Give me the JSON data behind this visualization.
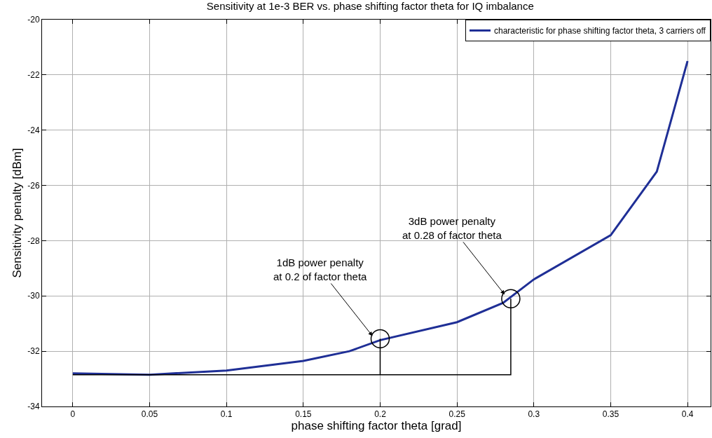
{
  "chart_data": {
    "type": "line",
    "title": "Sensitivity at 1e-3 BER vs. phase shifting factor theta for IQ imbalance",
    "xlabel": "phase shifting factor theta [grad]",
    "ylabel": "Sensitivity penalty [dBm]",
    "xlim": [
      -0.02,
      0.415
    ],
    "ylim": [
      -34,
      -20
    ],
    "xticks": [
      0,
      0.05,
      0.1,
      0.15,
      0.2,
      0.25,
      0.3,
      0.35,
      0.4
    ],
    "yticks": [
      -34,
      -32,
      -30,
      -28,
      -26,
      -24,
      -22,
      -20
    ],
    "grid": true,
    "legend": "top right",
    "marker": "none",
    "line_style": "solid",
    "series": [
      {
        "name": "characteristic for phase shifting factor theta, 3 carriers off",
        "color": "#1f2f96",
        "x": [
          0,
          0.05,
          0.1,
          0.15,
          0.18,
          0.2,
          0.25,
          0.28,
          0.3,
          0.35,
          0.38,
          0.4
        ],
        "values": [
          -32.8,
          -32.85,
          -32.7,
          -32.35,
          -32.0,
          -31.6,
          -30.95,
          -30.25,
          -29.4,
          -27.8,
          -25.5,
          -21.5
        ]
      },
      {
        "type": "line",
        "color": "#000000",
        "x": [
          0.2,
          0.2,
          0,
          0.285,
          0.285
        ],
        "values": [
          -31.55,
          -32.85,
          -32.85,
          -32.85,
          -30.1
        ]
      },
      {
        "type": "scatter",
        "marker": "circle",
        "color": "#000000",
        "x": [
          0.2,
          0.285
        ],
        "values": [
          -31.55,
          -30.1
        ]
      }
    ],
    "annotations": [
      {
        "text": "1dB power penalty\nat 0.2 of factor theta",
        "x": 0.195,
        "y": -31.45
      },
      {
        "text": "3dB power penalty\nat 0.28 of factor theta",
        "x": 0.281,
        "y": -29.95
      }
    ]
  }
}
